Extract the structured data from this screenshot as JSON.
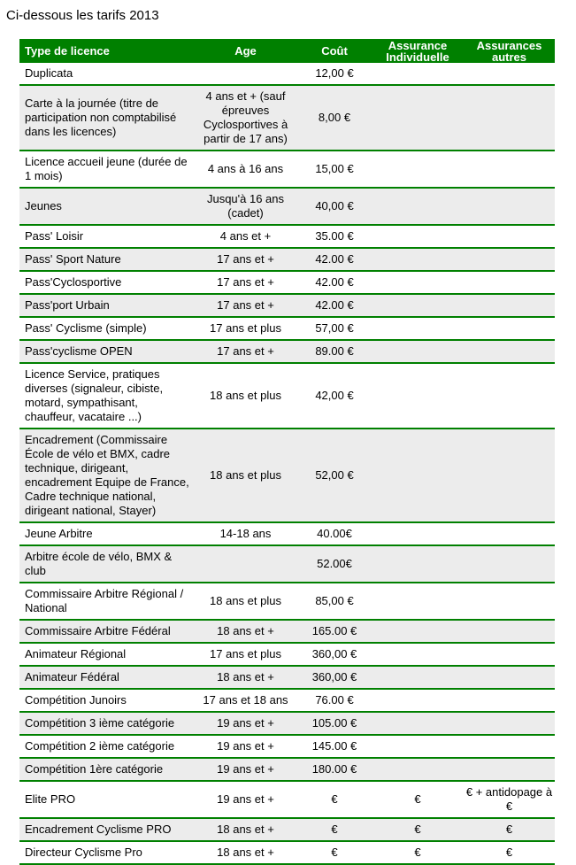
{
  "page": {
    "title": "Ci-dessous les tarifs 2013"
  },
  "colors": {
    "header_bg": "#008000",
    "header_text": "#ffffff",
    "row_alt_bg": "#ececec",
    "row_border": "#008000",
    "text": "#000000"
  },
  "table": {
    "columns": [
      {
        "label": "Type de licence"
      },
      {
        "label": "Age"
      },
      {
        "label": "Coût"
      },
      {
        "label": "Assurance Individuelle"
      },
      {
        "label": "Assurances autres"
      }
    ],
    "rows": [
      [
        "Duplicata",
        "",
        "12,00 €",
        "",
        ""
      ],
      [
        "Carte à la journée (titre de participation non comptabilisé dans les licences)",
        "4 ans et + (sauf épreuves Cyclosportives à partir de 17 ans)",
        "8,00 €",
        "",
        ""
      ],
      [
        "Licence accueil jeune (durée de 1 mois)",
        "4 ans à 16 ans",
        "15,00 €",
        "",
        ""
      ],
      [
        "Jeunes",
        "Jusqu'à 16 ans (cadet)",
        "40,00 €",
        "",
        ""
      ],
      [
        "Pass' Loisir",
        "4 ans et +",
        "35.00 €",
        "",
        ""
      ],
      [
        "Pass' Sport Nature",
        "17 ans et +",
        "42.00 €",
        "",
        ""
      ],
      [
        "Pass'Cyclosportive",
        "17 ans et +",
        "42.00 €",
        "",
        ""
      ],
      [
        "Pass'port Urbain",
        "17 ans et +",
        "42.00 €",
        "",
        ""
      ],
      [
        "Pass' Cyclisme (simple)",
        "17 ans et plus",
        "57,00 €",
        "",
        ""
      ],
      [
        "Pass'cyclisme OPEN",
        "17 ans et +",
        "89.00 €",
        "",
        ""
      ],
      [
        "Licence Service, pratiques diverses (signaleur, cibiste, motard, sympathisant, chauffeur, vacataire ...)",
        "18 ans et plus",
        "42,00 €",
        "",
        ""
      ],
      [
        "Encadrement (Commissaire École de vélo et BMX, cadre technique, dirigeant, encadrement Equipe de France, Cadre technique national, dirigeant national, Stayer)",
        "18 ans et plus",
        "52,00 €",
        "",
        ""
      ],
      [
        "Jeune Arbitre",
        "14-18 ans",
        "40.00€",
        "",
        ""
      ],
      [
        "Arbitre école de vélo, BMX & club",
        "",
        "52.00€",
        "",
        ""
      ],
      [
        "Commissaire Arbitre Régional / National",
        "18 ans et plus",
        "85,00 €",
        "",
        ""
      ],
      [
        "Commissaire Arbitre Fédéral",
        "18 ans et +",
        "165.00 €",
        "",
        ""
      ],
      [
        "Animateur Régional",
        "17 ans et plus",
        "360,00 €",
        "",
        ""
      ],
      [
        "Animateur Fédéral",
        "18 ans et +",
        "360,00 €",
        "",
        ""
      ],
      [
        "Compétition Junoirs",
        "17 ans et 18 ans",
        "76.00 €",
        "",
        ""
      ],
      [
        "Compétition 3 ième catégorie",
        "19 ans et +",
        "105.00 €",
        "",
        ""
      ],
      [
        "Compétition 2 ième catégorie",
        "19 ans et +",
        "145.00 €",
        "",
        ""
      ],
      [
        "Compétition 1ère catégorie",
        "19 ans et +",
        "180.00 €",
        "",
        ""
      ],
      [
        "Elite PRO",
        "19 ans et +",
        "€",
        "€",
        "€ + antidopage à €"
      ],
      [
        "Encadrement Cyclisme PRO",
        "18 ans et +",
        "€",
        "€",
        "€"
      ],
      [
        "Directeur Cyclisme Pro",
        "18 ans et +",
        "€",
        "€",
        "€"
      ]
    ]
  }
}
